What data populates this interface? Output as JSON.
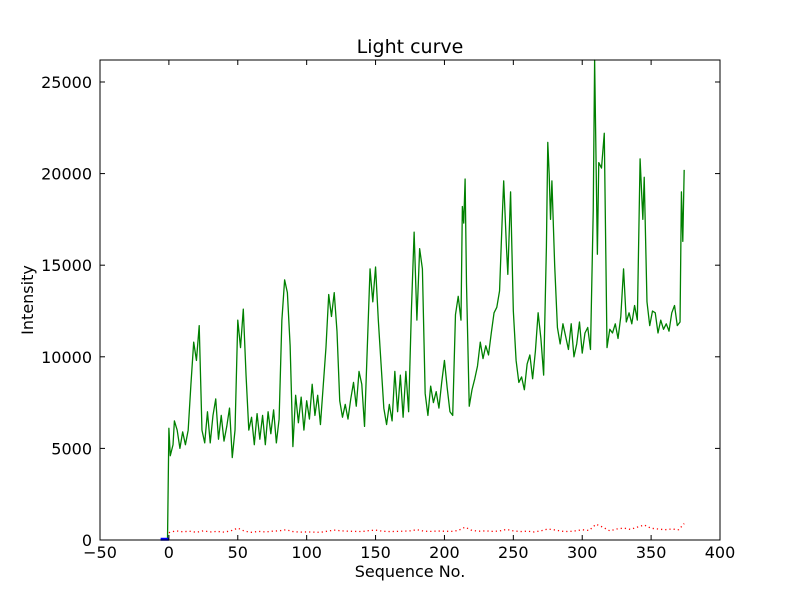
{
  "chart_data": {
    "type": "line",
    "title": "Light curve",
    "xlabel": "Sequence No.",
    "ylabel": "Intensity",
    "xlim": [
      -50,
      400
    ],
    "ylim": [
      0,
      26200
    ],
    "xticks": [
      -50,
      0,
      50,
      100,
      150,
      200,
      250,
      300,
      350,
      400
    ],
    "yticks": [
      0,
      5000,
      10000,
      15000,
      20000,
      25000
    ],
    "xtick_labels": [
      "−50",
      "0",
      "50",
      "100",
      "150",
      "200",
      "250",
      "300",
      "350",
      "400"
    ],
    "ytick_labels": [
      "0",
      "5000",
      "10000",
      "15000",
      "20000",
      "25000"
    ],
    "grid": false,
    "series": [
      {
        "style": "solid",
        "color": "#008000",
        "points": [
          [
            -1,
            0
          ],
          [
            0,
            6100
          ],
          [
            1,
            4600
          ],
          [
            3,
            5200
          ],
          [
            4,
            6500
          ],
          [
            6,
            6000
          ],
          [
            8,
            5000
          ],
          [
            10,
            5900
          ],
          [
            12,
            5200
          ],
          [
            14,
            6000
          ],
          [
            16,
            8500
          ],
          [
            18,
            10800
          ],
          [
            20,
            9800
          ],
          [
            22,
            11700
          ],
          [
            24,
            6000
          ],
          [
            26,
            5300
          ],
          [
            28,
            7000
          ],
          [
            30,
            5300
          ],
          [
            32,
            6800
          ],
          [
            34,
            7700
          ],
          [
            36,
            5500
          ],
          [
            38,
            6800
          ],
          [
            40,
            5400
          ],
          [
            42,
            6200
          ],
          [
            44,
            7200
          ],
          [
            46,
            4500
          ],
          [
            48,
            6000
          ],
          [
            50,
            12000
          ],
          [
            52,
            10500
          ],
          [
            54,
            12600
          ],
          [
            56,
            9000
          ],
          [
            58,
            6000
          ],
          [
            60,
            6700
          ],
          [
            62,
            5200
          ],
          [
            64,
            6900
          ],
          [
            66,
            5500
          ],
          [
            68,
            6800
          ],
          [
            70,
            5200
          ],
          [
            72,
            7000
          ],
          [
            74,
            5800
          ],
          [
            76,
            7100
          ],
          [
            78,
            5300
          ],
          [
            80,
            6600
          ],
          [
            82,
            12000
          ],
          [
            84,
            14200
          ],
          [
            86,
            13500
          ],
          [
            88,
            10600
          ],
          [
            90,
            5100
          ],
          [
            92,
            7900
          ],
          [
            94,
            6400
          ],
          [
            96,
            7800
          ],
          [
            98,
            6000
          ],
          [
            100,
            7600
          ],
          [
            102,
            6600
          ],
          [
            104,
            8500
          ],
          [
            106,
            6800
          ],
          [
            108,
            7900
          ],
          [
            110,
            6300
          ],
          [
            112,
            8400
          ],
          [
            114,
            10500
          ],
          [
            116,
            13400
          ],
          [
            118,
            12200
          ],
          [
            120,
            13500
          ],
          [
            122,
            11400
          ],
          [
            124,
            7600
          ],
          [
            126,
            6700
          ],
          [
            128,
            7400
          ],
          [
            130,
            6600
          ],
          [
            132,
            7700
          ],
          [
            134,
            8600
          ],
          [
            136,
            7300
          ],
          [
            138,
            9200
          ],
          [
            140,
            8500
          ],
          [
            142,
            6200
          ],
          [
            144,
            10500
          ],
          [
            146,
            14800
          ],
          [
            148,
            13000
          ],
          [
            150,
            14900
          ],
          [
            152,
            12000
          ],
          [
            154,
            9600
          ],
          [
            156,
            7200
          ],
          [
            158,
            6300
          ],
          [
            160,
            7400
          ],
          [
            162,
            6500
          ],
          [
            164,
            9200
          ],
          [
            166,
            7000
          ],
          [
            168,
            9000
          ],
          [
            170,
            6700
          ],
          [
            172,
            9200
          ],
          [
            174,
            7000
          ],
          [
            176,
            12500
          ],
          [
            178,
            16800
          ],
          [
            180,
            12000
          ],
          [
            182,
            15900
          ],
          [
            184,
            14800
          ],
          [
            186,
            8000
          ],
          [
            188,
            6800
          ],
          [
            190,
            8400
          ],
          [
            192,
            7500
          ],
          [
            194,
            8100
          ],
          [
            196,
            7200
          ],
          [
            198,
            8600
          ],
          [
            200,
            9800
          ],
          [
            202,
            8300
          ],
          [
            204,
            7000
          ],
          [
            206,
            6800
          ],
          [
            208,
            12300
          ],
          [
            210,
            13300
          ],
          [
            212,
            12000
          ],
          [
            213,
            18200
          ],
          [
            214,
            17300
          ],
          [
            215,
            19700
          ],
          [
            216,
            14000
          ],
          [
            218,
            7300
          ],
          [
            220,
            8200
          ],
          [
            222,
            8800
          ],
          [
            224,
            9500
          ],
          [
            226,
            10800
          ],
          [
            228,
            9900
          ],
          [
            230,
            10600
          ],
          [
            232,
            10100
          ],
          [
            234,
            11300
          ],
          [
            236,
            12400
          ],
          [
            238,
            12700
          ],
          [
            240,
            13600
          ],
          [
            242,
            17700
          ],
          [
            243,
            19600
          ],
          [
            245,
            16000
          ],
          [
            246,
            14500
          ],
          [
            248,
            19000
          ],
          [
            250,
            12500
          ],
          [
            252,
            9800
          ],
          [
            254,
            8600
          ],
          [
            256,
            8900
          ],
          [
            258,
            8200
          ],
          [
            260,
            9600
          ],
          [
            262,
            10100
          ],
          [
            264,
            8800
          ],
          [
            266,
            10300
          ],
          [
            268,
            12400
          ],
          [
            270,
            11000
          ],
          [
            272,
            9000
          ],
          [
            274,
            16000
          ],
          [
            275,
            21700
          ],
          [
            276,
            20000
          ],
          [
            277,
            17500
          ],
          [
            278,
            19600
          ],
          [
            280,
            15000
          ],
          [
            282,
            11600
          ],
          [
            284,
            10700
          ],
          [
            286,
            11800
          ],
          [
            288,
            11100
          ],
          [
            290,
            10400
          ],
          [
            292,
            11800
          ],
          [
            294,
            10000
          ],
          [
            296,
            10700
          ],
          [
            298,
            11900
          ],
          [
            300,
            10200
          ],
          [
            302,
            11300
          ],
          [
            304,
            11600
          ],
          [
            306,
            10400
          ],
          [
            308,
            18000
          ],
          [
            309,
            26200
          ],
          [
            311,
            15600
          ],
          [
            312,
            20600
          ],
          [
            314,
            20300
          ],
          [
            316,
            22200
          ],
          [
            318,
            10500
          ],
          [
            320,
            11500
          ],
          [
            322,
            11300
          ],
          [
            324,
            11800
          ],
          [
            326,
            11000
          ],
          [
            328,
            12200
          ],
          [
            330,
            14800
          ],
          [
            332,
            11900
          ],
          [
            334,
            12400
          ],
          [
            336,
            11800
          ],
          [
            338,
            12800
          ],
          [
            340,
            12000
          ],
          [
            342,
            20800
          ],
          [
            344,
            17500
          ],
          [
            345,
            19800
          ],
          [
            347,
            13000
          ],
          [
            349,
            11700
          ],
          [
            351,
            12500
          ],
          [
            353,
            12400
          ],
          [
            355,
            11300
          ],
          [
            357,
            12000
          ],
          [
            359,
            11500
          ],
          [
            361,
            11800
          ],
          [
            363,
            11400
          ],
          [
            365,
            12400
          ],
          [
            367,
            12800
          ],
          [
            369,
            11700
          ],
          [
            371,
            11900
          ],
          [
            372,
            19000
          ],
          [
            373,
            16300
          ],
          [
            374,
            20200
          ]
        ]
      },
      {
        "style": "dotted",
        "color": "#ff0000",
        "points": [
          [
            0,
            400
          ],
          [
            5,
            500
          ],
          [
            10,
            450
          ],
          [
            15,
            480
          ],
          [
            20,
            420
          ],
          [
            25,
            500
          ],
          [
            30,
            440
          ],
          [
            35,
            470
          ],
          [
            40,
            430
          ],
          [
            45,
            500
          ],
          [
            50,
            650
          ],
          [
            55,
            480
          ],
          [
            60,
            420
          ],
          [
            65,
            470
          ],
          [
            70,
            440
          ],
          [
            75,
            480
          ],
          [
            80,
            500
          ],
          [
            85,
            560
          ],
          [
            90,
            460
          ],
          [
            95,
            430
          ],
          [
            100,
            440
          ],
          [
            105,
            430
          ],
          [
            110,
            420
          ],
          [
            115,
            480
          ],
          [
            120,
            540
          ],
          [
            125,
            500
          ],
          [
            130,
            480
          ],
          [
            135,
            470
          ],
          [
            140,
            460
          ],
          [
            145,
            510
          ],
          [
            150,
            540
          ],
          [
            155,
            480
          ],
          [
            160,
            460
          ],
          [
            165,
            470
          ],
          [
            170,
            480
          ],
          [
            175,
            500
          ],
          [
            180,
            560
          ],
          [
            185,
            480
          ],
          [
            190,
            470
          ],
          [
            195,
            490
          ],
          [
            200,
            480
          ],
          [
            205,
            470
          ],
          [
            210,
            520
          ],
          [
            215,
            700
          ],
          [
            220,
            520
          ],
          [
            225,
            480
          ],
          [
            230,
            500
          ],
          [
            235,
            470
          ],
          [
            240,
            490
          ],
          [
            245,
            580
          ],
          [
            250,
            500
          ],
          [
            255,
            460
          ],
          [
            260,
            480
          ],
          [
            265,
            440
          ],
          [
            270,
            500
          ],
          [
            275,
            600
          ],
          [
            280,
            550
          ],
          [
            285,
            480
          ],
          [
            290,
            460
          ],
          [
            295,
            500
          ],
          [
            300,
            560
          ],
          [
            305,
            520
          ],
          [
            310,
            860
          ],
          [
            315,
            700
          ],
          [
            320,
            500
          ],
          [
            325,
            600
          ],
          [
            330,
            650
          ],
          [
            335,
            580
          ],
          [
            340,
            700
          ],
          [
            345,
            820
          ],
          [
            350,
            640
          ],
          [
            355,
            600
          ],
          [
            360,
            560
          ],
          [
            365,
            600
          ],
          [
            370,
            560
          ],
          [
            374,
            900
          ]
        ]
      },
      {
        "style": "solid",
        "color": "#0000ff",
        "points": [
          [
            -6,
            40
          ],
          [
            -3,
            40
          ],
          [
            0,
            40
          ]
        ]
      }
    ]
  }
}
